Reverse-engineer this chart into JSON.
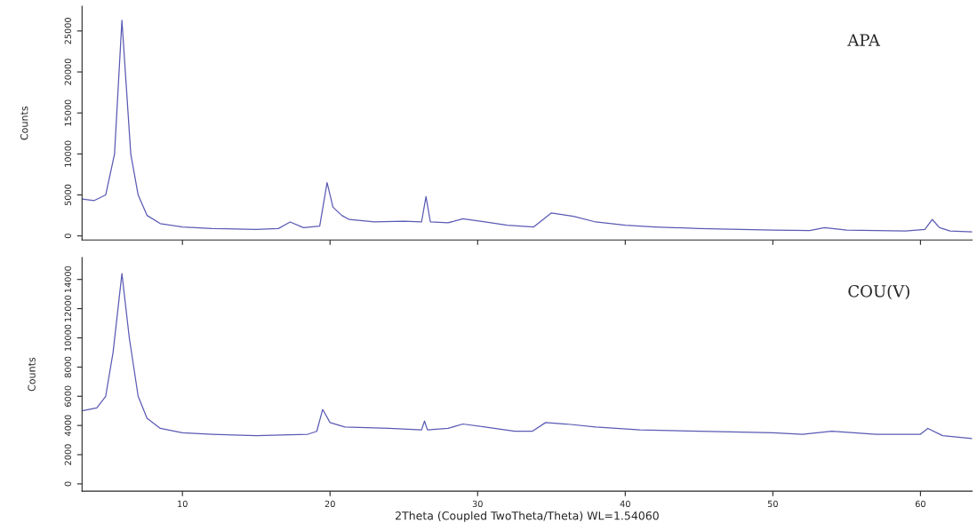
{
  "chart_data": [
    {
      "type": "line",
      "ylabel": "Counts",
      "annotations": [
        "APA"
      ],
      "xlim": [
        3.2,
        63.5
      ],
      "xticks": [
        {
          "value": 10,
          "label": null
        },
        {
          "value": 20,
          "label": null
        },
        {
          "value": 30,
          "label": null
        },
        {
          "value": 40,
          "label": null
        },
        {
          "value": 50,
          "label": null
        },
        {
          "value": 60,
          "label": null
        }
      ],
      "ylim": [
        -500,
        28000
      ],
      "yticks": [
        0,
        5000,
        10000,
        15000,
        20000,
        25000
      ],
      "tick_labels": "y",
      "grid": false,
      "legend": false,
      "series": [
        {
          "color": "#5a5ab4",
          "x": [
            3.2,
            4.0,
            4.8,
            5.4,
            5.9,
            6.5,
            7.0,
            7.6,
            8.5,
            10,
            12,
            15,
            16.5,
            17.3,
            18.2,
            19.3,
            19.8,
            20.2,
            20.8,
            21.3,
            23,
            25,
            26.2,
            26.5,
            26.8,
            28,
            29,
            30.5,
            32,
            33.8,
            35,
            36.5,
            38,
            40,
            42,
            45,
            50,
            52.5,
            53.5,
            55,
            59,
            60.3,
            60.8,
            61.3,
            62,
            63.5
          ],
          "values": [
            4500,
            4300,
            5000,
            10000,
            26300,
            10000,
            5000,
            2500,
            1500,
            1100,
            900,
            800,
            900,
            1700,
            1000,
            1200,
            6500,
            3500,
            2500,
            2000,
            1700,
            1800,
            1700,
            4800,
            1700,
            1600,
            2100,
            1700,
            1300,
            1100,
            2800,
            2400,
            1700,
            1300,
            1100,
            900,
            700,
            650,
            1000,
            700,
            600,
            800,
            2000,
            1000,
            600,
            500
          ]
        }
      ]
    },
    {
      "type": "line",
      "ylabel": "Counts",
      "xlabel": "2Theta (Coupled TwoTheta/Theta) WL=1.54060",
      "annotations": [
        "COU(V)"
      ],
      "xlim": [
        3.2,
        63.5
      ],
      "xticks": [
        10,
        20,
        30,
        40,
        50,
        60
      ],
      "ylim": [
        -500,
        15500
      ],
      "yticks": [
        0,
        2000,
        4000,
        6000,
        8000,
        10000,
        12000,
        14000
      ],
      "grid": false,
      "legend": false,
      "series": [
        {
          "color": "#5a5ab4",
          "x": [
            3.2,
            4.2,
            4.8,
            5.3,
            5.9,
            6.4,
            7.0,
            7.6,
            8.5,
            10,
            12,
            15,
            18.5,
            19.1,
            19.5,
            20,
            21,
            24,
            26.2,
            26.4,
            26.6,
            28,
            29,
            30.5,
            32.5,
            33.7,
            34.6,
            36,
            38,
            41,
            45,
            50,
            52,
            54,
            57,
            60,
            60.5,
            61.5,
            63.5
          ],
          "values": [
            5000,
            5200,
            6000,
            9000,
            14400,
            10000,
            6000,
            4500,
            3800,
            3500,
            3400,
            3300,
            3400,
            3600,
            5100,
            4200,
            3900,
            3800,
            3700,
            4300,
            3700,
            3800,
            4100,
            3900,
            3600,
            3600,
            4200,
            4100,
            3900,
            3700,
            3600,
            3500,
            3400,
            3600,
            3400,
            3400,
            3800,
            3300,
            3100
          ]
        }
      ]
    }
  ]
}
